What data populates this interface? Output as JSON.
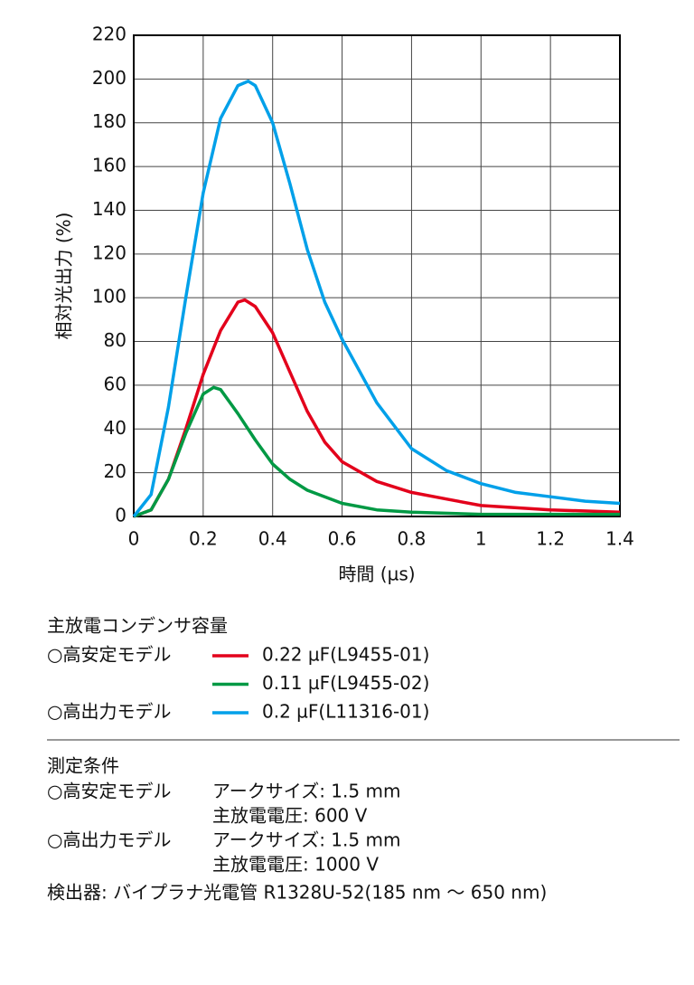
{
  "chart_data": {
    "type": "line",
    "xlabel": "時間 (µs)",
    "ylabel": "相対光出力 (%)",
    "xlim": [
      0,
      1.4
    ],
    "ylim": [
      0,
      220
    ],
    "xticks": [
      0,
      0.2,
      0.4,
      0.6,
      0.8,
      1,
      1.2,
      1.4
    ],
    "yticks": [
      0,
      20,
      40,
      60,
      80,
      100,
      120,
      140,
      160,
      180,
      200,
      220
    ],
    "grid": true,
    "legend": {
      "title": "主放電コンデンサ容量",
      "groups": [
        "○高安定モデル",
        "○高出力モデル"
      ]
    },
    "series": [
      {
        "name": "0.22 µF(L9455-01)",
        "color": "#e3001b",
        "x": [
          0,
          0.05,
          0.1,
          0.15,
          0.2,
          0.25,
          0.3,
          0.32,
          0.35,
          0.4,
          0.45,
          0.5,
          0.55,
          0.6,
          0.7,
          0.8,
          0.9,
          1.0,
          1.2,
          1.4
        ],
        "values": [
          0,
          3,
          17,
          40,
          65,
          85,
          98,
          99,
          96,
          84,
          66,
          48,
          34,
          25,
          16,
          11,
          8,
          5,
          3,
          2
        ]
      },
      {
        "name": "0.11 µF(L9455-02)",
        "color": "#009944",
        "x": [
          0,
          0.05,
          0.1,
          0.15,
          0.2,
          0.23,
          0.25,
          0.3,
          0.35,
          0.4,
          0.45,
          0.5,
          0.6,
          0.7,
          0.8,
          1.0,
          1.4
        ],
        "values": [
          0,
          3,
          17,
          38,
          56,
          59,
          58,
          47,
          35,
          24,
          17,
          12,
          6,
          3,
          2,
          1,
          1
        ]
      },
      {
        "name": "0.2 µF(L11316-01)",
        "color": "#00a0e9",
        "x": [
          0,
          0.05,
          0.1,
          0.15,
          0.2,
          0.25,
          0.3,
          0.33,
          0.35,
          0.4,
          0.45,
          0.5,
          0.55,
          0.6,
          0.7,
          0.8,
          0.9,
          1.0,
          1.1,
          1.2,
          1.3,
          1.4
        ],
        "values": [
          0,
          10,
          50,
          100,
          148,
          182,
          197,
          199,
          197,
          180,
          152,
          122,
          98,
          81,
          52,
          31,
          21,
          15,
          11,
          9,
          7,
          6
        ]
      }
    ]
  },
  "conditions": {
    "title": "測定条件",
    "rows": [
      {
        "model": "○高安定モデル",
        "lines": [
          "アークサイズ: 1.5 mm",
          "主放電電圧: 600 V"
        ]
      },
      {
        "model": "○高出力モデル",
        "lines": [
          "アークサイズ: 1.5 mm",
          "主放電電圧: 1000 V"
        ]
      }
    ],
    "detector": "検出器: バイプラナ光電管 R1328U-52(185 nm 〜 650 nm)"
  }
}
